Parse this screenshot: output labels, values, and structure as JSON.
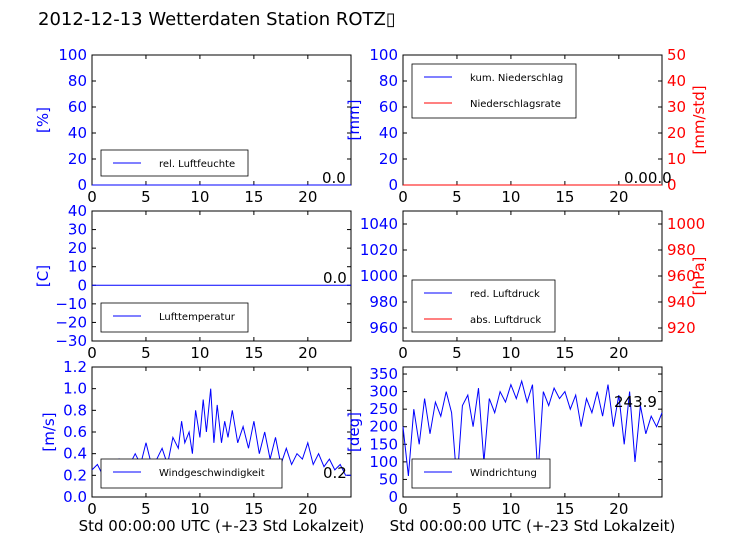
{
  "title": "2012-12-13 Wetterdaten Station ROTZ▯",
  "colors": {
    "blue": "#0000ff",
    "red": "#ff0000",
    "black": "#000000"
  },
  "chart_data": [
    {
      "id": "humidity",
      "type": "line",
      "xlim": [
        0,
        24
      ],
      "ylim": [
        0,
        100
      ],
      "xticks": [
        0,
        5,
        10,
        15,
        20
      ],
      "yticks": [
        0,
        20,
        40,
        60,
        80,
        100
      ],
      "ylabel": "[%]",
      "series": [
        {
          "name": "rel. Luftfeuchte",
          "color": "#0000ff",
          "x": [
            0,
            24
          ],
          "y": [
            0,
            0
          ]
        }
      ],
      "value_label": "0.0",
      "legend": "lower-left"
    },
    {
      "id": "precip",
      "type": "line",
      "xlim": [
        0,
        24
      ],
      "ylim": [
        0,
        100
      ],
      "xticks": [
        0,
        5,
        10,
        15,
        20
      ],
      "yticks": [
        0,
        20,
        40,
        60,
        80,
        100
      ],
      "ylabel": "[mm]",
      "y2lim": [
        0,
        50
      ],
      "y2ticks": [
        0,
        10,
        20,
        30,
        40,
        50
      ],
      "y2label": "[mm/std]",
      "series": [
        {
          "name": "kum. Niederschlag",
          "color": "#0000ff",
          "x": [
            0,
            24
          ],
          "y": [
            0,
            0
          ]
        },
        {
          "name": "Niederschlagsrate",
          "color": "#ff0000",
          "x": [
            0,
            24
          ],
          "y": [
            0,
            0
          ]
        }
      ],
      "value_label": "0.00.0",
      "legend": "upper-left"
    },
    {
      "id": "temperature",
      "type": "line",
      "xlim": [
        0,
        24
      ],
      "ylim": [
        -30,
        40
      ],
      "xticks": [
        0,
        5,
        10,
        15,
        20
      ],
      "yticks": [
        -30,
        -20,
        -10,
        0,
        10,
        20,
        30,
        40
      ],
      "ylabel": "[C]",
      "series": [
        {
          "name": "Lufttemperatur",
          "color": "#0000ff",
          "x": [
            0,
            24
          ],
          "y": [
            0,
            0
          ]
        }
      ],
      "value_label": "0.0",
      "legend": "lower-left"
    },
    {
      "id": "pressure",
      "type": "line",
      "xlim": [
        0,
        24
      ],
      "ylim": [
        950,
        1050
      ],
      "xticks": [
        0,
        5,
        10,
        15,
        20
      ],
      "yticks": [
        960,
        980,
        1000,
        1020,
        1040
      ],
      "y2lim": [
        910,
        1010
      ],
      "y2ticks": [
        920,
        940,
        960,
        980,
        1000
      ],
      "y2label": "[hPa]",
      "series": [
        {
          "name": "red. Luftdruck",
          "color": "#0000ff",
          "x": [],
          "y": []
        },
        {
          "name": "abs. Luftdruck",
          "color": "#ff0000",
          "x": [],
          "y": []
        }
      ],
      "legend": "lower-left"
    },
    {
      "id": "wind_speed",
      "type": "line",
      "xlim": [
        0,
        24
      ],
      "ylim": [
        0,
        1.2
      ],
      "xticks": [
        0,
        5,
        10,
        15,
        20
      ],
      "yticks": [
        0.0,
        0.2,
        0.4,
        0.6,
        0.8,
        1.0,
        1.2
      ],
      "ylabel": "[m/s]",
      "xlabel": "Std 00:00:00 UTC (+-23 Std Lokalzeit)",
      "series": [
        {
          "name": "Windgeschwindigkeit",
          "color": "#0000ff",
          "x": [
            0,
            0.5,
            1,
            1.5,
            2,
            2.5,
            3,
            3.5,
            4,
            4.5,
            5,
            5.5,
            6,
            6.5,
            7,
            7.5,
            8,
            8.3,
            8.6,
            9,
            9.3,
            9.6,
            10,
            10.3,
            10.6,
            11,
            11.3,
            11.6,
            12,
            12.3,
            12.6,
            13,
            13.5,
            14,
            14.5,
            15,
            15.5,
            16,
            16.5,
            17,
            17.5,
            18,
            18.5,
            19,
            19.5,
            20,
            20.5,
            21,
            21.5,
            22,
            22.5,
            23,
            23.5,
            24
          ],
          "y": [
            0.25,
            0.3,
            0.2,
            0.33,
            0.28,
            0.35,
            0.25,
            0.3,
            0.4,
            0.3,
            0.5,
            0.3,
            0.35,
            0.45,
            0.3,
            0.55,
            0.45,
            0.7,
            0.5,
            0.6,
            0.4,
            0.8,
            0.55,
            0.9,
            0.6,
            1.0,
            0.5,
            0.85,
            0.5,
            0.7,
            0.55,
            0.8,
            0.5,
            0.65,
            0.45,
            0.7,
            0.4,
            0.6,
            0.35,
            0.55,
            0.3,
            0.45,
            0.3,
            0.4,
            0.35,
            0.5,
            0.3,
            0.4,
            0.28,
            0.35,
            0.25,
            0.3,
            0.2,
            0.2
          ]
        }
      ],
      "value_label": "0.2",
      "legend": "lower-left"
    },
    {
      "id": "wind_direction",
      "type": "line",
      "xlim": [
        0,
        24
      ],
      "ylim": [
        0,
        370
      ],
      "xticks": [
        0,
        5,
        10,
        15,
        20
      ],
      "yticks": [
        0,
        50,
        100,
        150,
        200,
        250,
        300,
        350
      ],
      "ylabel": "[deg]",
      "xlabel": "Std 00:00:00 UTC (+-23 Std Lokalzeit)",
      "series": [
        {
          "name": "Windrichtung",
          "color": "#0000ff",
          "x": [
            0,
            0.5,
            1,
            1.5,
            2,
            2.5,
            3,
            3.5,
            4,
            4.5,
            5,
            5.5,
            6,
            6.5,
            7,
            7.5,
            8,
            8.5,
            9,
            9.5,
            10,
            10.5,
            11,
            11.5,
            12,
            12.5,
            13,
            13.5,
            14,
            14.5,
            15,
            15.5,
            16,
            16.5,
            17,
            17.5,
            18,
            18.5,
            19,
            19.5,
            20,
            20.5,
            21,
            21.5,
            22,
            22.5,
            23,
            23.5,
            24
          ],
          "y": [
            200,
            60,
            250,
            150,
            280,
            180,
            270,
            230,
            300,
            240,
            40,
            260,
            290,
            200,
            310,
            100,
            280,
            240,
            300,
            270,
            320,
            280,
            330,
            270,
            320,
            60,
            300,
            260,
            310,
            280,
            300,
            250,
            290,
            200,
            280,
            240,
            300,
            230,
            320,
            200,
            290,
            150,
            300,
            100,
            260,
            180,
            230,
            200,
            240
          ]
        }
      ],
      "value_label": "243.9",
      "legend": "lower-left"
    }
  ]
}
